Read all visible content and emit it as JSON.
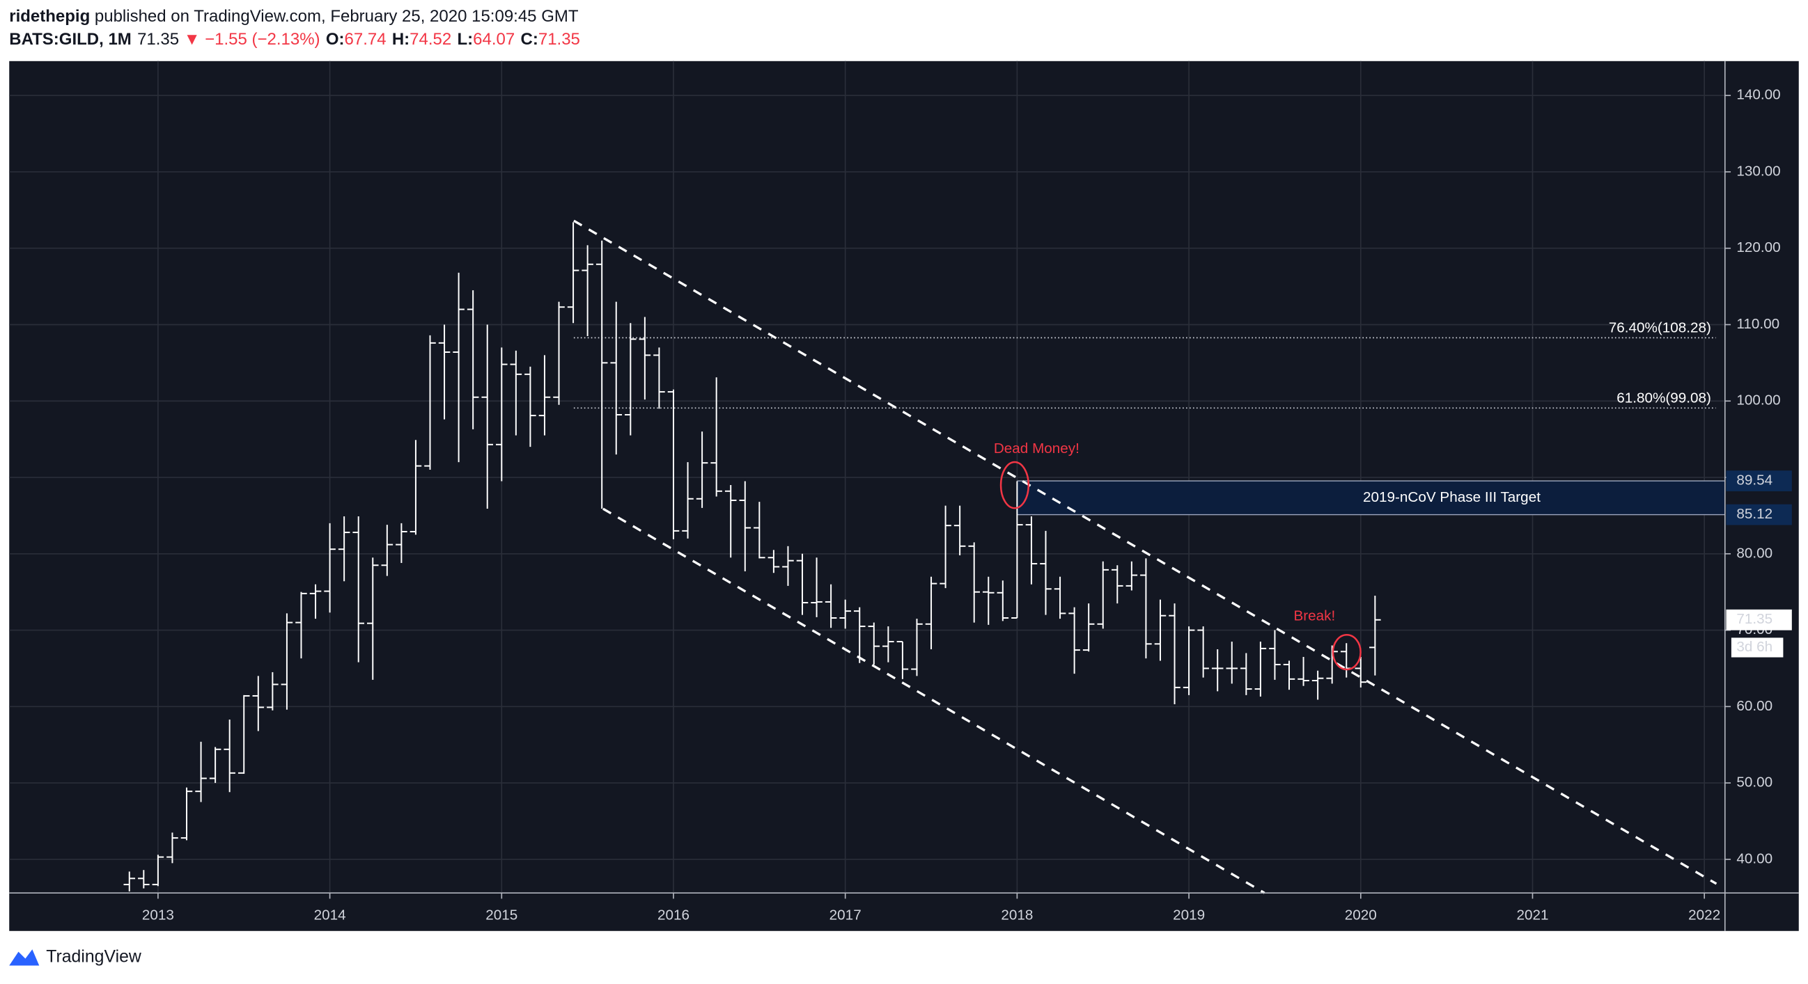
{
  "header": {
    "author": "ridethepig",
    "published": "published on TradingView.com, February 25, 2020 15:09:45 GMT",
    "symbol": "BATS:GILD, 1M",
    "arrow": "▼",
    "change": "−1.55",
    "change_pct": "(−2.13%)",
    "labels": [
      "O:",
      "H:",
      "L:",
      "C:"
    ]
  },
  "chart_data": {
    "type": "ohlc",
    "color": "#ffffff",
    "x": [
      "2012-11",
      "2012-12",
      "2013-01",
      "2013-02",
      "2013-03",
      "2013-04",
      "2013-05",
      "2013-06",
      "2013-07",
      "2013-08",
      "2013-09",
      "2013-10",
      "2013-11",
      "2013-12",
      "2014-01",
      "2014-02",
      "2014-03",
      "2014-04",
      "2014-05",
      "2014-06",
      "2014-07",
      "2014-08",
      "2014-09",
      "2014-10",
      "2014-11",
      "2014-12",
      "2015-01",
      "2015-02",
      "2015-03",
      "2015-04",
      "2015-05",
      "2015-06",
      "2015-07",
      "2015-08",
      "2015-09",
      "2015-10",
      "2015-11",
      "2015-12",
      "2016-01",
      "2016-02",
      "2016-03",
      "2016-04",
      "2016-05",
      "2016-06",
      "2016-07",
      "2016-08",
      "2016-09",
      "2016-10",
      "2016-11",
      "2016-12",
      "2017-01",
      "2017-02",
      "2017-03",
      "2017-04",
      "2017-05",
      "2017-06",
      "2017-07",
      "2017-08",
      "2017-09",
      "2017-10",
      "2017-11",
      "2017-12",
      "2018-01",
      "2018-02",
      "2018-03",
      "2018-04",
      "2018-05",
      "2018-06",
      "2018-07",
      "2018-08",
      "2018-09",
      "2018-10",
      "2018-11",
      "2018-12",
      "2019-01",
      "2019-02",
      "2019-03",
      "2019-04",
      "2019-05",
      "2019-06",
      "2019-07",
      "2019-08",
      "2019-09",
      "2019-10",
      "2019-11",
      "2019-12",
      "2020-01",
      "2020-02"
    ],
    "open": [
      36.7,
      37.5,
      36.7,
      40.3,
      42.8,
      48.9,
      50.6,
      54.4,
      51.3,
      61.4,
      59.9,
      62.9,
      71.0,
      74.8,
      75.1,
      80.6,
      82.8,
      70.9,
      78.5,
      81.2,
      82.9,
      91.5,
      107.6,
      106.4,
      112.0,
      100.5,
      94.3,
      104.8,
      103.5,
      98.1,
      100.5,
      112.3,
      117.1,
      117.9,
      105.0,
      98.2,
      108.1,
      106.0,
      101.2,
      83.0,
      87.2,
      91.9,
      88.2,
      87.0,
      83.4,
      79.5,
      78.3,
      79.1,
      73.6,
      73.7,
      71.6,
      72.5,
      70.5,
      67.9,
      68.5,
      64.9,
      70.8,
      76.1,
      83.7,
      81.0,
      75.0,
      74.9,
      71.6,
      83.8,
      78.7,
      75.4,
      72.2,
      67.4,
      70.8,
      77.9,
      75.8,
      77.2,
      68.2,
      71.9,
      62.5,
      70.0,
      65.0,
      65.0,
      65.0,
      62.3,
      67.6,
      65.5,
      63.6,
      63.4,
      63.7,
      67.2,
      65.0,
      67.74
    ],
    "high": [
      38.4,
      38.6,
      40.6,
      43.5,
      49.4,
      55.4,
      54.7,
      58.3,
      61.5,
      64.0,
      64.5,
      72.2,
      75.0,
      76.0,
      84.0,
      84.9,
      84.9,
      79.5,
      83.8,
      84.0,
      94.9,
      108.6,
      110.0,
      116.8,
      114.5,
      110.0,
      107.0,
      106.6,
      104.5,
      106.0,
      113.0,
      123.4,
      120.4,
      121.0,
      113.0,
      110.2,
      111.0,
      107.0,
      101.5,
      92.0,
      96.0,
      103.1,
      89.0,
      89.5,
      86.8,
      80.5,
      81.0,
      80.0,
      79.5,
      76.0,
      74.0,
      73.0,
      71.0,
      70.5,
      68.5,
      71.5,
      77.0,
      86.3,
      86.3,
      81.5,
      77.0,
      76.5,
      89.5,
      84.9,
      83.0,
      77.0,
      73.0,
      73.5,
      79.0,
      78.5,
      79.0,
      79.4,
      74.0,
      73.5,
      70.5,
      70.5,
      67.5,
      68.5,
      67.0,
      68.5,
      70.0,
      66.0,
      66.5,
      64.7,
      68.0,
      68.3,
      66.5,
      74.52
    ],
    "low": [
      35.8,
      36.2,
      36.5,
      39.5,
      42.5,
      47.5,
      50.0,
      48.8,
      51.2,
      56.8,
      59.5,
      59.6,
      66.3,
      71.5,
      72.3,
      76.4,
      65.8,
      63.5,
      77.1,
      78.8,
      82.5,
      91.0,
      97.6,
      92.0,
      96.3,
      85.9,
      89.5,
      95.5,
      94.0,
      95.5,
      99.5,
      110.2,
      108.5,
      85.9,
      93.0,
      95.5,
      100.2,
      99.0,
      81.9,
      82.0,
      86.0,
      87.5,
      79.5,
      77.7,
      79.4,
      77.5,
      75.8,
      72.0,
      71.7,
      70.3,
      70.2,
      65.7,
      65.5,
      65.8,
      63.6,
      64.0,
      67.5,
      75.5,
      79.8,
      71.0,
      70.7,
      71.2,
      71.6,
      76.0,
      72.0,
      71.5,
      64.3,
      67.2,
      70.2,
      73.5,
      75.2,
      66.3,
      66.0,
      60.3,
      61.5,
      63.8,
      62.0,
      63.0,
      61.5,
      61.3,
      63.5,
      62.2,
      62.7,
      60.9,
      63.0,
      63.8,
      62.5,
      64.07
    ],
    "close": [
      37.5,
      36.7,
      40.3,
      42.8,
      48.9,
      50.6,
      54.4,
      51.3,
      61.4,
      59.9,
      62.9,
      71.0,
      74.8,
      75.1,
      80.6,
      82.8,
      70.9,
      78.5,
      81.2,
      82.9,
      91.5,
      107.6,
      106.4,
      112.0,
      100.5,
      94.3,
      104.8,
      103.5,
      98.1,
      100.5,
      112.3,
      117.1,
      117.9,
      105.0,
      98.2,
      108.1,
      106.0,
      101.2,
      83.0,
      87.2,
      91.9,
      88.2,
      87.0,
      83.4,
      79.5,
      78.3,
      79.1,
      73.6,
      73.7,
      71.6,
      72.5,
      70.5,
      67.9,
      68.5,
      64.9,
      70.8,
      76.1,
      83.7,
      81.0,
      75.0,
      74.9,
      71.6,
      83.8,
      78.7,
      75.4,
      72.2,
      67.4,
      70.8,
      77.9,
      75.8,
      77.2,
      68.2,
      71.9,
      62.5,
      70.0,
      65.0,
      65.0,
      65.0,
      62.3,
      67.6,
      65.5,
      63.6,
      63.4,
      63.7,
      67.2,
      65.0,
      63.2,
      71.35
    ],
    "xlim": [
      2012.134,
      2022.12
    ],
    "xticks": [
      2013,
      2014,
      2015,
      2016,
      2017,
      2018,
      2019,
      2020,
      2021,
      2022
    ],
    "ylim": [
      35.6,
      144.5
    ],
    "yticks": [
      {
        "value": 40,
        "label": "40.00"
      },
      {
        "value": 50,
        "label": "50.00"
      },
      {
        "value": 60,
        "label": "60.00"
      },
      {
        "value": 70,
        "label": "70.00"
      },
      {
        "value": 80,
        "label": "80.00"
      },
      {
        "value": 90,
        "label": "90.00"
      },
      {
        "value": 100,
        "label": "100.00"
      },
      {
        "value": 110,
        "label": "110.00"
      },
      {
        "value": 120,
        "label": "120.00"
      },
      {
        "value": 130,
        "label": "130.00"
      },
      {
        "value": 140,
        "label": "140.00"
      }
    ],
    "grid": true,
    "trendlines": [
      {
        "x": [
          2015.42,
          2022.07
        ],
        "y": [
          123.6,
          36.8
        ]
      },
      {
        "x": [
          2015.59,
          2019.44
        ],
        "y": [
          85.9,
          35.6
        ]
      }
    ],
    "fib_levels": [
      {
        "label": "76.40%(108.28)",
        "value": 108.28,
        "x_start": 2015.42
      },
      {
        "label": "61.80%(99.08)",
        "value": 99.08,
        "x_start": 2015.42
      }
    ],
    "target_zone": {
      "label": "2019-nCoV Phase III Target",
      "top": 89.54,
      "bottom": 85.12,
      "x_start": 2018.0
    },
    "annotations": [
      "Dead Money!",
      "Break!"
    ],
    "countdown": "3d 6h"
  },
  "footer": {
    "brand": "TradingView"
  }
}
